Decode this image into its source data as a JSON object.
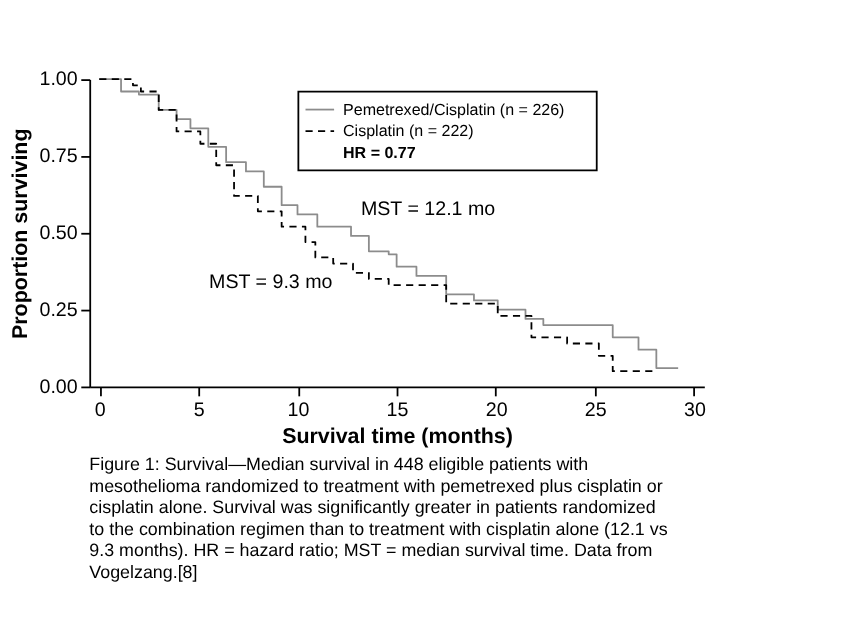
{
  "chart_data": {
    "type": "step",
    "xlabel": "Survival time (months)",
    "ylabel": "Proportion surviving",
    "xlim": [
      -0.5,
      30.5
    ],
    "xticks": [
      0,
      5,
      10,
      15,
      20,
      25,
      30
    ],
    "ylim": [
      0,
      1.0
    ],
    "yticks": [
      {
        "value": 0,
        "label": "0.00"
      },
      {
        "value": 0.25,
        "label": "0.25"
      },
      {
        "value": 0.5,
        "label": "0.50"
      },
      {
        "value": 0.75,
        "label": "0.75"
      },
      {
        "value": 1.0,
        "label": "1.00"
      }
    ],
    "grid": false,
    "legend": "top right",
    "series": [
      {
        "name": "Pemetrexed/Cisplatin (n = 226)",
        "color": "#8c8c8c",
        "line_style": "solid",
        "x": [
          0,
          1.1,
          2,
          3,
          3.9,
          4.6,
          5.5,
          6.4,
          7.4,
          8.3,
          9.2,
          10,
          11,
          12.7,
          13.6,
          14.6,
          15,
          16,
          17.5,
          18.9,
          20.1,
          21.5,
          22.4,
          25.9,
          27.2,
          28.1,
          29.2
        ],
        "values": [
          1.0,
          0.96,
          0.95,
          0.9,
          0.87,
          0.84,
          0.78,
          0.73,
          0.7,
          0.65,
          0.59,
          0.56,
          0.52,
          0.49,
          0.44,
          0.43,
          0.39,
          0.36,
          0.3,
          0.28,
          0.25,
          0.22,
          0.2,
          0.16,
          0.12,
          0.06,
          0.06
        ]
      },
      {
        "name": "Cisplatin (n = 222)",
        "color": "#000000",
        "line_style": "dashed",
        "x": [
          0,
          1.7,
          2.1,
          3,
          3.9,
          5.1,
          5.9,
          6.8,
          8,
          9.2,
          10.4,
          10.9,
          11.8,
          12.8,
          13.6,
          14.6,
          17.5,
          20.1,
          21.8,
          23.6,
          25.2,
          25.9,
          27.9
        ],
        "values": [
          1.0,
          0.98,
          0.96,
          0.9,
          0.83,
          0.79,
          0.72,
          0.62,
          0.57,
          0.52,
          0.47,
          0.42,
          0.4,
          0.37,
          0.35,
          0.33,
          0.27,
          0.23,
          0.16,
          0.14,
          0.1,
          0.05,
          0.05
        ]
      }
    ],
    "annotations": [
      "HR = 0.77",
      "MST = 12.1 mo",
      "MST = 9.3 mo",
      "Figure 1: Survival—Median survival in 448 eligible patients with mesothelioma randomized to treatment with pemetrexed plus cisplatin or cisplatin alone. Survival was significantly greater in patients randomized to the combination regimen than to treatment with cisplatin alone (12.1 vs 9.3 months). HR = hazard ratio; MST = median survival time. Data from Vogelzang.[8]"
    ]
  }
}
